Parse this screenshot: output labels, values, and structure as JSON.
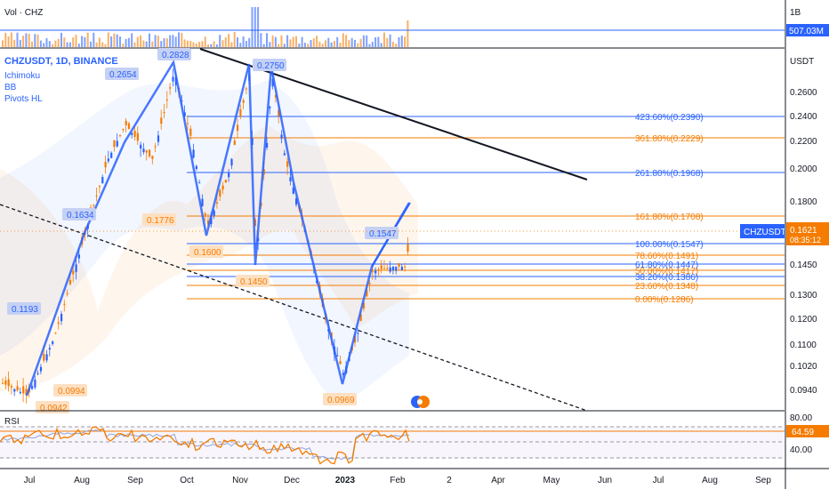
{
  "volume_pane": {
    "label": "Vol · CHZ",
    "axis_label": "1B",
    "value_badge": "507.03M"
  },
  "main_pane": {
    "legend": [
      "CHZUSDT, 1D, BINANCE",
      "Ichimoku",
      "BB",
      "Pivots HL"
    ],
    "currency": "USDT",
    "price_ticks": [
      "0.2600",
      "0.2400",
      "0.2200",
      "0.2000",
      "0.1800",
      "0.1450",
      "0.1300",
      "0.1200",
      "0.1100",
      "0.1020",
      "0.0940"
    ],
    "symbol_badge": "CHZUSDT",
    "price_badge": "0.1621",
    "countdown_badge": "08:35:12",
    "pivot_labels": {
      "blue": [
        "0.2828",
        "0.2654",
        "0.2750",
        "0.1634",
        "0.1547",
        "0.1193"
      ],
      "orange": [
        "0.1776",
        "0.1600",
        "0.1450",
        "0.0994",
        "0.0942",
        "0.0969"
      ]
    },
    "fib_levels": [
      {
        "label": "423.60%(0.2390)",
        "color": "#2962ff"
      },
      {
        "label": "361.80%(0.2229)",
        "color": "#f57c00"
      },
      {
        "label": "261.80%(0.1968)",
        "color": "#2962ff"
      },
      {
        "label": "161.80%(0.1708)",
        "color": "#f57c00"
      },
      {
        "label": "100.00%(0.1547)",
        "color": "#2962ff"
      },
      {
        "label": "78.60%(0.1491)",
        "color": "#f57c00"
      },
      {
        "label": "61.80%(0.1447)",
        "color": "#2962ff"
      },
      {
        "label": "50.00%(0.1417)",
        "color": "#f57c00"
      },
      {
        "label": "38.20%(0.1386)",
        "color": "#2962ff"
      },
      {
        "label": "23.60%(0.1348)",
        "color": "#f57c00"
      },
      {
        "label": "0.00%(0.1286)",
        "color": "#f57c00"
      }
    ]
  },
  "rsi_pane": {
    "label": "RSI",
    "ticks": [
      "80.00",
      "40.00"
    ],
    "value_badge": "64.59"
  },
  "time_axis": [
    "Jul",
    "Aug",
    "Sep",
    "Oct",
    "Nov",
    "Dec",
    "2023",
    "Feb",
    "2",
    "Apr",
    "May",
    "Jun",
    "Jul",
    "Aug",
    "Sep"
  ],
  "colors": {
    "blue": "#2962ff",
    "orange": "#f57c00",
    "up": "#26a69a",
    "candle": "#f57c00",
    "text": "#131722"
  }
}
